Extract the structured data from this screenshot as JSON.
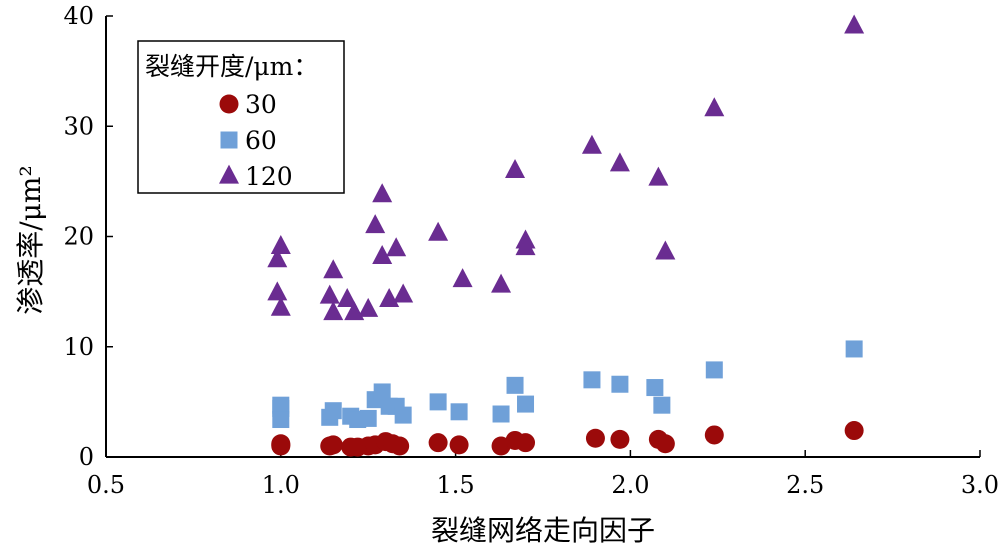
{
  "chart_data": {
    "type": "scatter",
    "xlabel": "裂缝网络走向因子",
    "ylabel": "渗透率/μm²",
    "xlim": [
      0.5,
      3.0
    ],
    "ylim": [
      0,
      40
    ],
    "xticks": [
      "0.5",
      "1.0",
      "1.5",
      "2.0",
      "2.5",
      "3.0"
    ],
    "yticks": [
      "0",
      "10",
      "20",
      "30",
      "40"
    ],
    "grid": false,
    "legend": {
      "title": "裂缝开度/μm：",
      "placement": "top-left"
    },
    "series": [
      {
        "name": "30",
        "marker": "circle",
        "color": "#9b0a0a",
        "points": [
          [
            1.0,
            1.1
          ],
          [
            1.0,
            1.2
          ],
          [
            1.0,
            1.0
          ],
          [
            1.14,
            1.0
          ],
          [
            1.15,
            1.1
          ],
          [
            1.2,
            0.9
          ],
          [
            1.22,
            0.9
          ],
          [
            1.25,
            1.0
          ],
          [
            1.27,
            1.1
          ],
          [
            1.3,
            1.4
          ],
          [
            1.32,
            1.2
          ],
          [
            1.34,
            1.0
          ],
          [
            1.45,
            1.3
          ],
          [
            1.51,
            1.1
          ],
          [
            1.63,
            1.0
          ],
          [
            1.67,
            1.5
          ],
          [
            1.7,
            1.3
          ],
          [
            1.9,
            1.7
          ],
          [
            1.97,
            1.6
          ],
          [
            2.08,
            1.6
          ],
          [
            2.1,
            1.2
          ],
          [
            2.24,
            2.0
          ],
          [
            2.64,
            2.4
          ]
        ]
      },
      {
        "name": "60",
        "marker": "square",
        "color": "#6fa0d8",
        "points": [
          [
            1.0,
            4.4
          ],
          [
            1.0,
            4.7
          ],
          [
            1.0,
            3.4
          ],
          [
            1.14,
            3.6
          ],
          [
            1.15,
            4.2
          ],
          [
            1.2,
            3.7
          ],
          [
            1.22,
            3.4
          ],
          [
            1.25,
            3.5
          ],
          [
            1.27,
            5.2
          ],
          [
            1.29,
            5.9
          ],
          [
            1.31,
            4.6
          ],
          [
            1.33,
            4.6
          ],
          [
            1.35,
            3.8
          ],
          [
            1.45,
            5.0
          ],
          [
            1.51,
            4.1
          ],
          [
            1.63,
            3.9
          ],
          [
            1.67,
            6.5
          ],
          [
            1.7,
            4.8
          ],
          [
            1.89,
            7.0
          ],
          [
            1.97,
            6.6
          ],
          [
            2.07,
            6.3
          ],
          [
            2.09,
            4.7
          ],
          [
            2.24,
            7.9
          ],
          [
            2.64,
            9.8
          ]
        ]
      },
      {
        "name": "120",
        "marker": "triangle",
        "color": "#6a2c91",
        "points": [
          [
            0.99,
            17.9
          ],
          [
            1.0,
            19.1
          ],
          [
            0.99,
            14.9
          ],
          [
            1.0,
            13.5
          ],
          [
            1.15,
            16.9
          ],
          [
            1.14,
            14.6
          ],
          [
            1.15,
            13.1
          ],
          [
            1.19,
            14.3
          ],
          [
            1.21,
            13.1
          ],
          [
            1.25,
            13.4
          ],
          [
            1.27,
            21.0
          ],
          [
            1.29,
            18.2
          ],
          [
            1.29,
            23.8
          ],
          [
            1.31,
            14.3
          ],
          [
            1.33,
            18.9
          ],
          [
            1.35,
            14.7
          ],
          [
            1.45,
            20.3
          ],
          [
            1.52,
            16.1
          ],
          [
            1.63,
            15.6
          ],
          [
            1.67,
            26.0
          ],
          [
            1.7,
            19.0
          ],
          [
            1.7,
            19.6
          ],
          [
            1.89,
            28.2
          ],
          [
            1.97,
            26.6
          ],
          [
            2.08,
            25.3
          ],
          [
            2.1,
            18.6
          ],
          [
            2.24,
            31.6
          ],
          [
            2.64,
            39.1
          ]
        ]
      }
    ]
  }
}
